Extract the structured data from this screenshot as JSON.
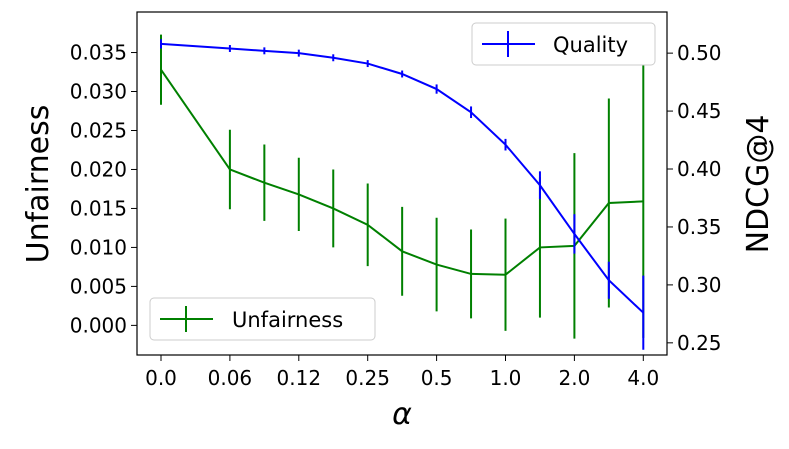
{
  "chart_data": {
    "type": "line",
    "xlabel": "α",
    "ylabel_left": "Unfairness",
    "ylabel_right": "NDCG@4",
    "x_tick_labels": [
      "0.0",
      "0.06",
      "0.12",
      "0.25",
      "0.5",
      "1.0",
      "2.0",
      "4.0"
    ],
    "x_tick_positions": [
      0,
      1,
      2,
      3,
      4,
      5,
      6,
      7
    ],
    "x": [
      0,
      1,
      1.5,
      2,
      2.5,
      3,
      3.5,
      4,
      4.5,
      5,
      5.5,
      6,
      6.5,
      7
    ],
    "ylim_left": [
      -0.0038,
      0.0402
    ],
    "ylim_right": [
      0.2395,
      0.5355
    ],
    "yticks_left": [
      "0.000",
      "0.005",
      "0.010",
      "0.015",
      "0.020",
      "0.025",
      "0.030",
      "0.035"
    ],
    "yticks_right": [
      "0.25",
      "0.30",
      "0.35",
      "0.40",
      "0.45",
      "0.50"
    ],
    "grid": false,
    "series": [
      {
        "name": "Quality",
        "axis": "right",
        "color": "#0000ff",
        "values": [
          0.508,
          0.504,
          0.502,
          0.5,
          0.496,
          0.491,
          0.482,
          0.469,
          0.449,
          0.421,
          0.386,
          0.344,
          0.304,
          0.276
        ],
        "errors": [
          0.004,
          0.003,
          0.003,
          0.003,
          0.003,
          0.003,
          0.003,
          0.004,
          0.005,
          0.005,
          0.012,
          0.017,
          0.016,
          0.032
        ],
        "legend": "top-right"
      },
      {
        "name": "Unfairness",
        "axis": "left",
        "color": "#008000",
        "values": [
          0.0328,
          0.02,
          0.0183,
          0.0168,
          0.015,
          0.0129,
          0.0095,
          0.0078,
          0.0066,
          0.0065,
          0.01,
          0.0102,
          0.0157,
          0.0159
        ],
        "errors": [
          0.0045,
          0.0051,
          0.0049,
          0.0047,
          0.005,
          0.0053,
          0.0057,
          0.006,
          0.0057,
          0.0072,
          0.009,
          0.0119,
          0.0134,
          0.0175
        ],
        "legend": "bottom-left"
      }
    ]
  }
}
